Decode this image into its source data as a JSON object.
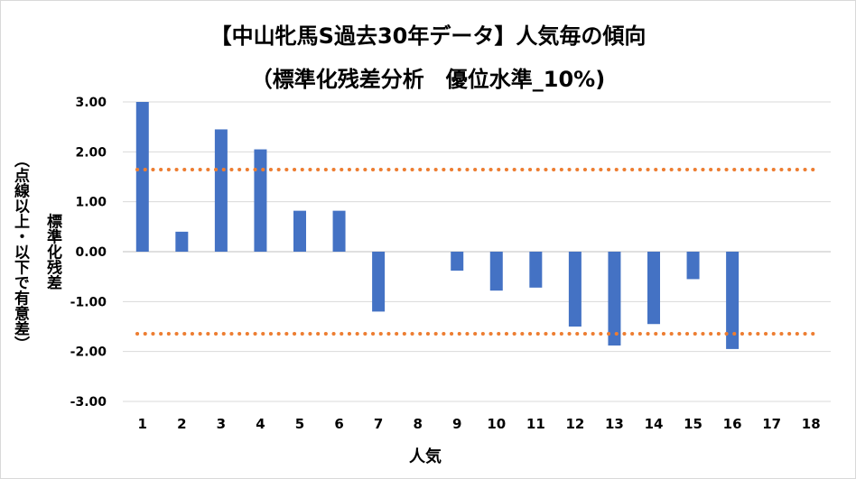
{
  "chart_data": {
    "type": "bar",
    "title": "【中山牝馬S過去30年データ】人気毎の傾向",
    "subtitle": "（標準化残差分析　優位水準_10%)",
    "xlabel": "人気",
    "ylabel_line1": "標準化残差",
    "ylabel_line2": "（点線以上・以下で有意差）",
    "ylim": [
      -3,
      3
    ],
    "yticks": [
      "3.00",
      "2.00",
      "1.00",
      "0.00",
      "-1.00",
      "-2.00",
      "-3.00"
    ],
    "categories": [
      "1",
      "2",
      "3",
      "4",
      "5",
      "6",
      "7",
      "8",
      "9",
      "10",
      "11",
      "12",
      "13",
      "14",
      "15",
      "16",
      "17",
      "18"
    ],
    "values": [
      3.0,
      0.4,
      2.45,
      2.05,
      0.82,
      0.82,
      -1.2,
      0,
      -0.38,
      -0.78,
      -0.72,
      -1.5,
      -1.88,
      -1.45,
      -0.55,
      -1.95,
      0,
      0
    ],
    "threshold_lines": [
      1.645,
      -1.645
    ],
    "grid": true,
    "colors": {
      "bar": "#4472c4",
      "threshold": "#ed7d31",
      "grid": "#d9d9d9",
      "axis": "#bfbfbf"
    }
  }
}
